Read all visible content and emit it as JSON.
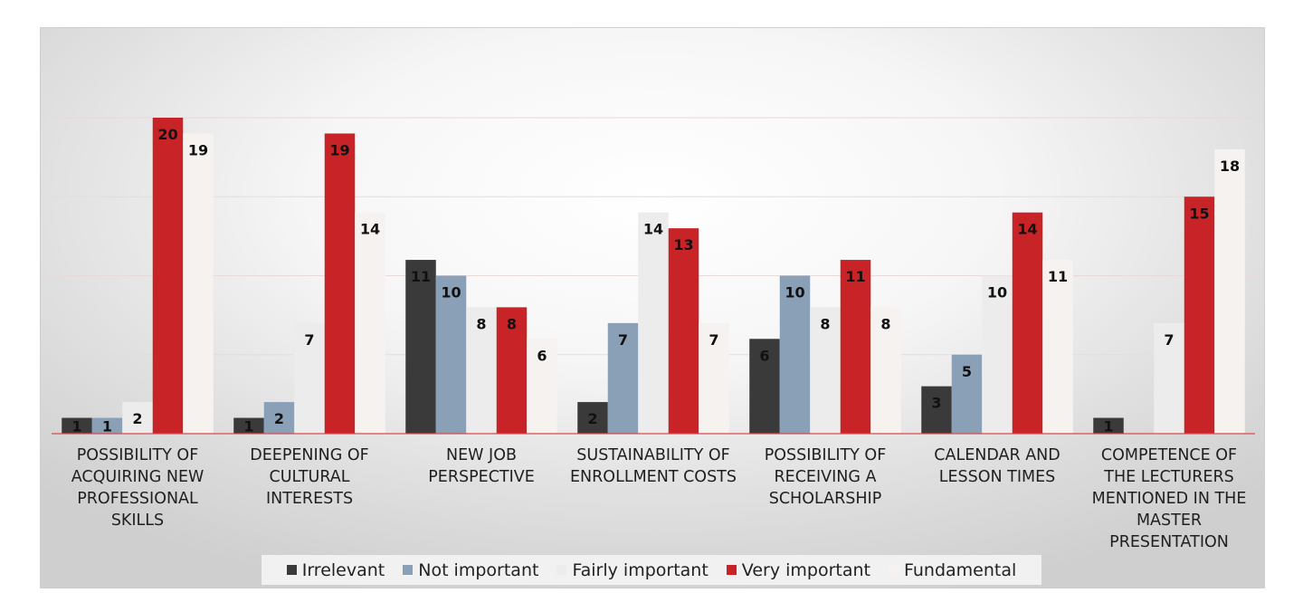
{
  "chart_data": {
    "type": "bar",
    "categories": [
      "POSSIBILITY OF ACQUIRING NEW PROFESSIONAL SKILLS",
      "DEEPENING OF CULTURAL INTERESTS",
      "NEW JOB PERSPECTIVE",
      "SUSTAINABILITY OF ENROLLMENT COSTS",
      "POSSIBILITY OF RECEIVING A SCHOLARSHIP",
      "CALENDAR AND LESSON TIMES",
      "COMPETENCE OF THE LECTURERS MENTIONED IN THE MASTER PRESENTATION"
    ],
    "category_lines": [
      [
        "POSSIBILITY OF",
        "ACQUIRING NEW",
        "PROFESSIONAL",
        "SKILLS"
      ],
      [
        "DEEPENING OF",
        "CULTURAL",
        "INTERESTS"
      ],
      [
        "NEW JOB",
        "PERSPECTIVE"
      ],
      [
        "SUSTAINABILITY OF",
        "ENROLLMENT COSTS"
      ],
      [
        "POSSIBILITY OF",
        "RECEIVING A",
        "SCHOLARSHIP"
      ],
      [
        "CALENDAR AND",
        "LESSON TIMES"
      ],
      [
        "COMPETENCE OF",
        "THE LECTURERS",
        "MENTIONED IN THE",
        "MASTER",
        "PRESENTATION"
      ]
    ],
    "series": [
      {
        "name": "Irrelevant",
        "color": "#3a3a3a",
        "label_color": "#111111",
        "values": [
          1,
          1,
          11,
          2,
          6,
          3,
          1
        ]
      },
      {
        "name": "Not important",
        "color": "#8aa0b6",
        "label_color": "#111111",
        "values": [
          1,
          2,
          10,
          7,
          10,
          5,
          0
        ]
      },
      {
        "name": "Fairly important",
        "color": "#ececec",
        "label_color": "#111111",
        "values": [
          2,
          7,
          8,
          14,
          8,
          10,
          7
        ]
      },
      {
        "name": "Very important",
        "color": "#c82428",
        "label_color": "#111111",
        "values": [
          20,
          19,
          8,
          13,
          11,
          14,
          15
        ]
      },
      {
        "name": "Fundamental",
        "color": "#f5f2ef",
        "label_color": "#111111",
        "values": [
          19,
          14,
          6,
          7,
          8,
          11,
          18
        ]
      }
    ],
    "ylim": [
      0,
      25
    ],
    "grid": true,
    "legend": "bottom"
  }
}
